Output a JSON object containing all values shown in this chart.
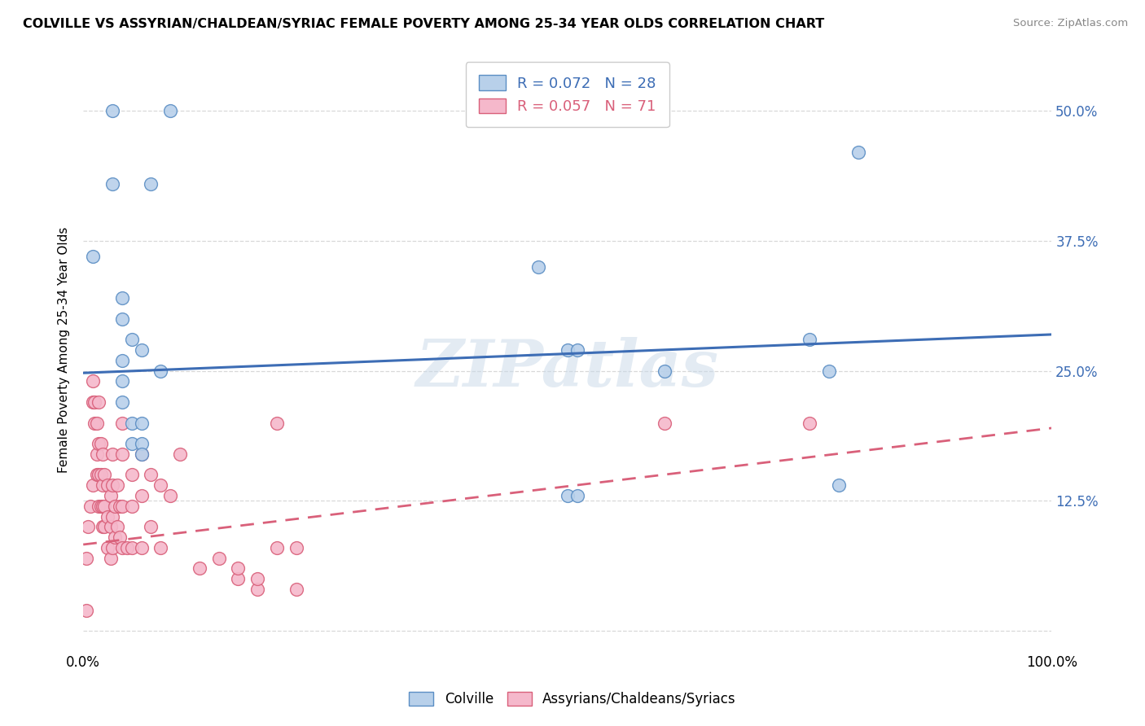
{
  "title": "COLVILLE VS ASSYRIAN/CHALDEAN/SYRIAC FEMALE POVERTY AMONG 25-34 YEAR OLDS CORRELATION CHART",
  "source": "Source: ZipAtlas.com",
  "ylabel": "Female Poverty Among 25-34 Year Olds",
  "xlim": [
    0,
    1.0
  ],
  "ylim": [
    -0.02,
    0.56
  ],
  "xticks": [
    0.0,
    0.25,
    0.5,
    0.75,
    1.0
  ],
  "xticklabels": [
    "0.0%",
    "",
    "",
    "",
    "100.0%"
  ],
  "yticks": [
    0.0,
    0.125,
    0.25,
    0.375,
    0.5
  ],
  "yticklabels_left": [
    "",
    "",
    "",
    "",
    ""
  ],
  "yticklabels_right": [
    "",
    "12.5%",
    "25.0%",
    "37.5%",
    "50.0%"
  ],
  "background_color": "#ffffff",
  "grid_color": "#d8d8d8",
  "watermark": "ZIPatlas",
  "blue_R": 0.072,
  "blue_N": 28,
  "pink_R": 0.057,
  "pink_N": 71,
  "blue_label": "Colville",
  "pink_label": "Assyrians/Chaldeans/Syriacs",
  "blue_color": "#b8d0ea",
  "blue_edge_color": "#5b8ec4",
  "pink_color": "#f5b8cb",
  "pink_edge_color": "#d9607a",
  "blue_line_color": "#3d6db5",
  "pink_line_color": "#d9607a",
  "blue_points_x": [
    0.03,
    0.09,
    0.01,
    0.07,
    0.03,
    0.04,
    0.04,
    0.05,
    0.04,
    0.04,
    0.06,
    0.47,
    0.5,
    0.51,
    0.75,
    0.77,
    0.78,
    0.8,
    0.6,
    0.04,
    0.05,
    0.05,
    0.06,
    0.06,
    0.06,
    0.08,
    0.5,
    0.51
  ],
  "blue_points_y": [
    0.5,
    0.5,
    0.36,
    0.43,
    0.43,
    0.32,
    0.3,
    0.28,
    0.26,
    0.24,
    0.27,
    0.35,
    0.27,
    0.27,
    0.28,
    0.25,
    0.14,
    0.46,
    0.25,
    0.22,
    0.2,
    0.18,
    0.2,
    0.18,
    0.17,
    0.25,
    0.13,
    0.13
  ],
  "pink_points_x": [
    0.003,
    0.005,
    0.007,
    0.01,
    0.01,
    0.01,
    0.012,
    0.012,
    0.014,
    0.014,
    0.014,
    0.016,
    0.016,
    0.016,
    0.016,
    0.018,
    0.018,
    0.018,
    0.02,
    0.02,
    0.02,
    0.02,
    0.022,
    0.022,
    0.022,
    0.025,
    0.025,
    0.025,
    0.028,
    0.028,
    0.028,
    0.03,
    0.03,
    0.03,
    0.03,
    0.033,
    0.033,
    0.035,
    0.035,
    0.038,
    0.038,
    0.04,
    0.04,
    0.04,
    0.04,
    0.045,
    0.05,
    0.05,
    0.05,
    0.06,
    0.06,
    0.06,
    0.07,
    0.07,
    0.08,
    0.08,
    0.09,
    0.1,
    0.12,
    0.14,
    0.16,
    0.18,
    0.2,
    0.22,
    0.16,
    0.18,
    0.2,
    0.22,
    0.6,
    0.75,
    0.003
  ],
  "pink_points_y": [
    0.07,
    0.1,
    0.12,
    0.24,
    0.22,
    0.14,
    0.22,
    0.2,
    0.2,
    0.17,
    0.15,
    0.22,
    0.18,
    0.15,
    0.12,
    0.18,
    0.15,
    0.12,
    0.17,
    0.14,
    0.12,
    0.1,
    0.15,
    0.12,
    0.1,
    0.14,
    0.11,
    0.08,
    0.13,
    0.1,
    0.07,
    0.17,
    0.14,
    0.11,
    0.08,
    0.12,
    0.09,
    0.14,
    0.1,
    0.12,
    0.09,
    0.2,
    0.17,
    0.12,
    0.08,
    0.08,
    0.15,
    0.12,
    0.08,
    0.17,
    0.13,
    0.08,
    0.15,
    0.1,
    0.14,
    0.08,
    0.13,
    0.17,
    0.06,
    0.07,
    0.05,
    0.04,
    0.2,
    0.04,
    0.06,
    0.05,
    0.08,
    0.08,
    0.2,
    0.2,
    0.02
  ]
}
